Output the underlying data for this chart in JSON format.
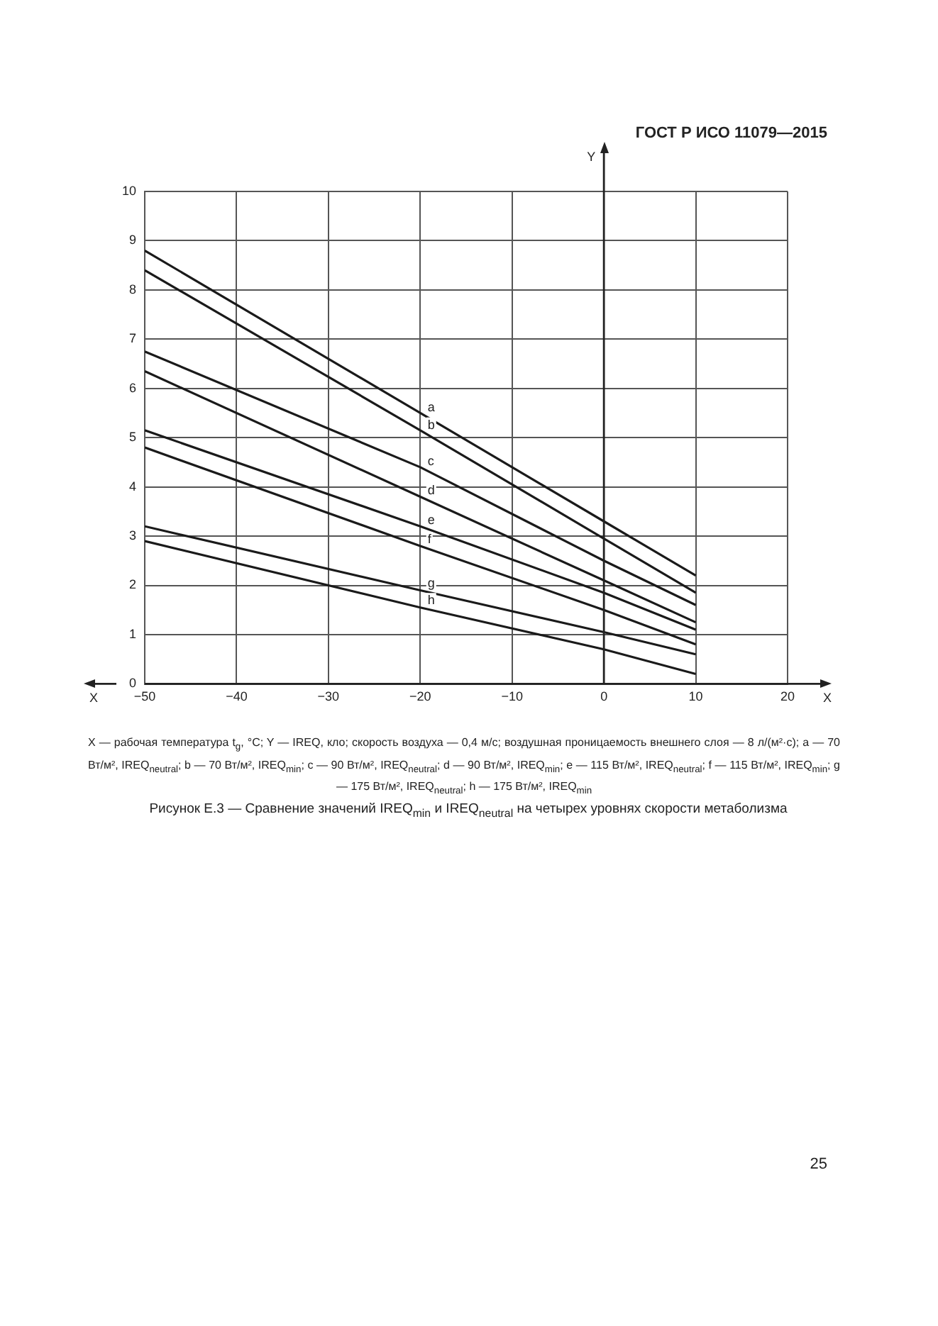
{
  "chart_data": {
    "type": "line",
    "title": "Рисунок Е.3 — Сравнение значений IREQ$_{min}$ и IREQ$_{neutral}$ на четырех уровнях скорости метаболизма",
    "xlabel": "X",
    "ylabel": "Y",
    "annotations": [
      "ГОСТ Р ИСО 11079—2015",
      "X — рабочая температура t$_{g}$, °C; Y — IREQ, кло; скорость воздуха — 0,4 м/с; воздушная проницаемость внешнего слоя — 8 л/(м²·с); a — 70 Вт/м², IREQ$_{neutral}$; b — 70 Вт/м², IREQ$_{min}$; c — 90 Вт/м², IREQ$_{neutral}$; d — 90 Вт/м², IREQ$_{min}$; e — 115 Вт/м², IREQ$_{neutral}$; f — 115 Вт/м², IREQ$_{min}$; g — 175 Вт/м², IREQ$_{neutral}$; h — 175 Вт/м², IREQ$_{min}$",
      "25"
    ],
    "x": [
      -50,
      -20,
      0,
      10
    ],
    "series": [
      {
        "name": "a",
        "color": "#1a1a1a",
        "values": [
          8.8,
          5.5,
          3.3,
          2.2
        ]
      },
      {
        "name": "b",
        "color": "#1a1a1a",
        "values": [
          8.4,
          5.15,
          2.95,
          1.85
        ]
      },
      {
        "name": "c",
        "color": "#1a1a1a",
        "values": [
          6.75,
          4.4,
          2.5,
          1.6
        ]
      },
      {
        "name": "d",
        "color": "#1a1a1a",
        "values": [
          6.35,
          3.8,
          2.1,
          1.25
        ]
      },
      {
        "name": "e",
        "color": "#1a1a1a",
        "values": [
          5.15,
          3.2,
          1.85,
          1.1
        ]
      },
      {
        "name": "f",
        "color": "#1a1a1a",
        "values": [
          4.8,
          2.8,
          1.5,
          0.8
        ]
      },
      {
        "name": "g",
        "color": "#1a1a1a",
        "values": [
          3.2,
          1.9,
          1.05,
          0.6
        ]
      },
      {
        "name": "h",
        "color": "#1a1a1a",
        "values": [
          2.9,
          1.55,
          0.7,
          0.2
        ]
      }
    ],
    "xlim": [
      -50,
      20
    ],
    "xticks": [
      -50,
      -40,
      -30,
      -20,
      -10,
      0,
      10,
      20
    ],
    "ylim": [
      0,
      10
    ],
    "yticks": [
      0,
      1,
      2,
      3,
      4,
      5,
      6,
      7,
      8,
      9,
      10
    ],
    "grid": true,
    "legend": false,
    "marker": "none",
    "line_style": "solid"
  }
}
